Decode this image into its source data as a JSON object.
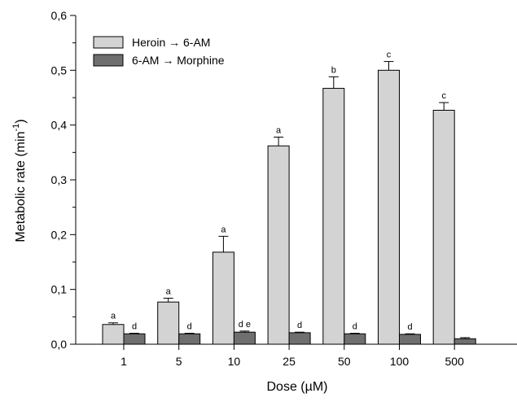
{
  "chart_data": {
    "type": "bar",
    "xlabel": "Dose (µM)",
    "ylabel": "Metabolic rate (min",
    "ylabel_superscript": "-1",
    "ylabel_close": ")",
    "categories": [
      "1",
      "5",
      "10",
      "25",
      "50",
      "100",
      "500"
    ],
    "ylim": [
      0,
      0.6
    ],
    "yticks": [
      "0,0",
      "0,1",
      "0,2",
      "0,3",
      "0,4",
      "0,5",
      "0,6"
    ],
    "legend_position": "top-left",
    "grid": false,
    "series": [
      {
        "name": "Heroin → 6-AM",
        "color": "#d3d3d3",
        "values": [
          0.036,
          0.077,
          0.168,
          0.362,
          0.467,
          0.5,
          0.427
        ],
        "errors": [
          0.003,
          0.007,
          0.029,
          0.016,
          0.021,
          0.016,
          0.014
        ],
        "labels": [
          "a",
          "a",
          "a",
          "a",
          "b",
          "c",
          "c"
        ]
      },
      {
        "name": "6-AM → Morphine",
        "color": "#6f6f6f",
        "values": [
          0.019,
          0.019,
          0.022,
          0.021,
          0.019,
          0.018,
          0.01
        ],
        "errors": [
          0.001,
          0.001,
          0.002,
          0.001,
          0.001,
          0.001,
          0.002
        ],
        "labels": [
          "d",
          "d",
          "d e",
          "d",
          "d",
          "d",
          ""
        ]
      }
    ]
  }
}
